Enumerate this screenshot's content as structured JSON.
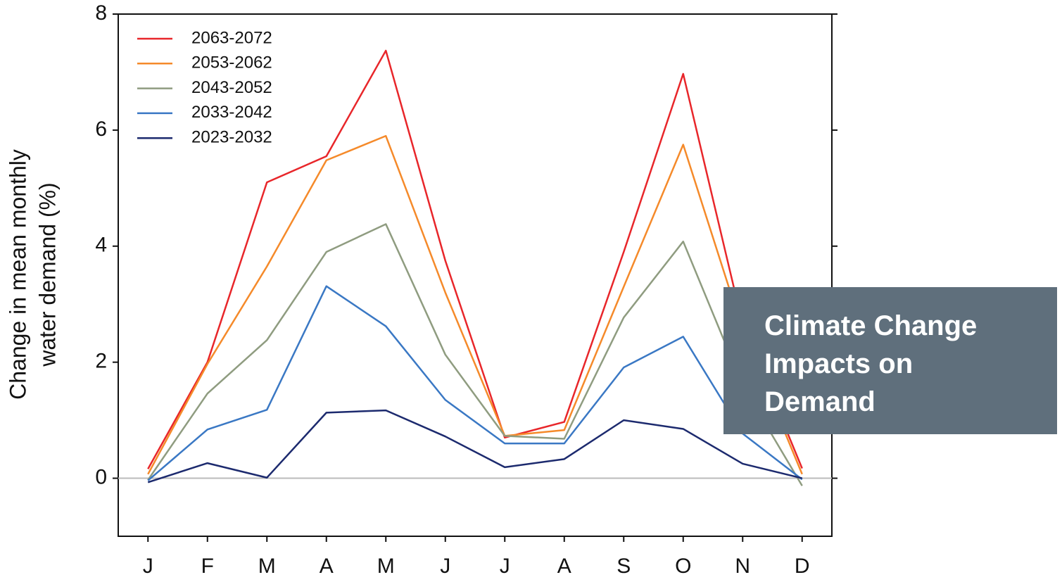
{
  "chart_data": {
    "type": "line",
    "y_label": [
      "Change in mean monthly",
      "water demand (%)"
    ],
    "categories": [
      "J",
      "F",
      "M",
      "A",
      "M",
      "J",
      "J",
      "A",
      "S",
      "O",
      "N",
      "D"
    ],
    "series": [
      {
        "name": "2063-2072",
        "color": "#e8262a",
        "values": [
          0.16,
          2.0,
          5.1,
          5.55,
          7.37,
          3.75,
          0.7,
          0.97,
          3.9,
          6.97,
          2.65,
          0.17
        ]
      },
      {
        "name": "2053-2062",
        "color": "#f58a2a",
        "values": [
          0.07,
          1.97,
          3.65,
          5.48,
          5.9,
          3.2,
          0.73,
          0.83,
          3.3,
          5.75,
          2.55,
          0.07
        ]
      },
      {
        "name": "2043-2052",
        "color": "#8f9c80",
        "values": [
          -0.03,
          1.46,
          2.38,
          3.9,
          4.38,
          2.13,
          0.73,
          0.68,
          2.77,
          4.08,
          1.6,
          -0.13
        ]
      },
      {
        "name": "2033-2042",
        "color": "#3a78c4",
        "values": [
          -0.04,
          0.84,
          1.18,
          3.31,
          2.62,
          1.35,
          0.6,
          0.6,
          1.91,
          2.44,
          0.77,
          -0.02
        ]
      },
      {
        "name": "2023-2032",
        "color": "#1c2a6e",
        "values": [
          -0.07,
          0.26,
          0.01,
          1.13,
          1.17,
          0.72,
          0.19,
          0.33,
          1.0,
          0.85,
          0.25,
          0.0
        ]
      }
    ],
    "ylim": [
      -1,
      8
    ],
    "yticks": [
      0,
      2,
      4,
      6,
      8
    ],
    "grid": false,
    "zero_line": true,
    "legend": "upper left"
  },
  "overlay": {
    "title": "Climate Change Impacts on Demand"
  }
}
